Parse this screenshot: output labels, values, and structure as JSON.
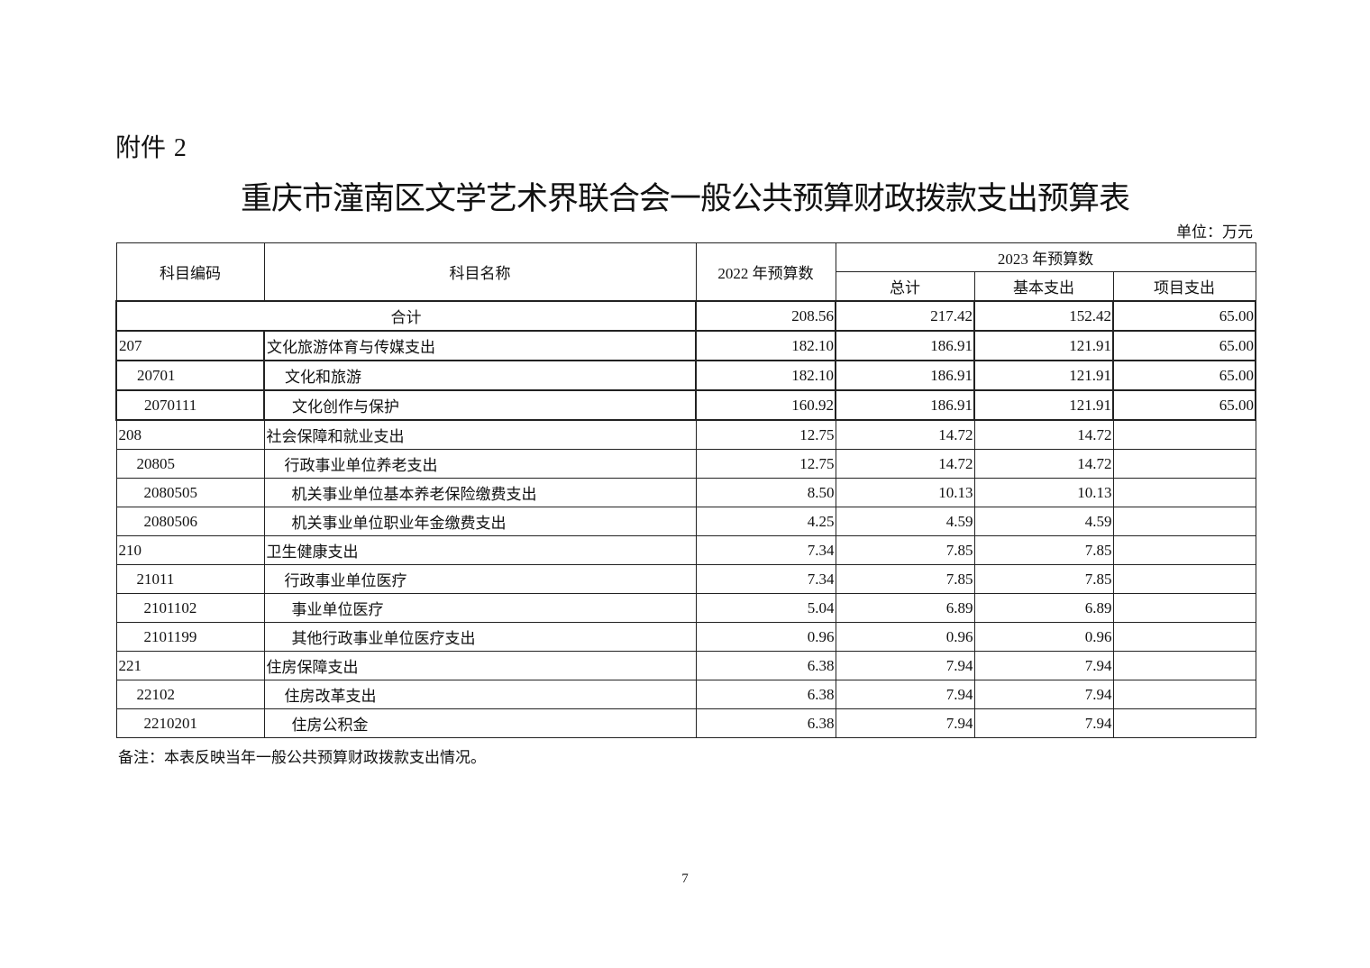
{
  "attachment": {
    "label": "附件",
    "number": "2"
  },
  "title": "重庆市潼南区文学艺术界联合会一般公共预算财政拨款支出预算表",
  "unit": "单位：万元",
  "table": {
    "headers": {
      "code": "科目编码",
      "name": "科目名称",
      "budget_2022": "2022 年预算数",
      "budget_2023": "2023 年预算数",
      "total": "总计",
      "basic": "基本支出",
      "project": "项目支出"
    },
    "total_row": {
      "label": "合计",
      "budget_2022": "208.56",
      "total": "217.42",
      "basic": "152.42",
      "project": "65.00"
    },
    "rows": [
      {
        "level": 0,
        "code": "207",
        "name": "文化旅游体育与传媒支出",
        "budget_2022": "182.10",
        "total": "186.91",
        "basic": "121.91",
        "project": "65.00"
      },
      {
        "level": 1,
        "code": "20701",
        "name": "文化和旅游",
        "budget_2022": "182.10",
        "total": "186.91",
        "basic": "121.91",
        "project": "65.00"
      },
      {
        "level": 2,
        "code": "2070111",
        "name": "文化创作与保护",
        "budget_2022": "160.92",
        "total": "186.91",
        "basic": "121.91",
        "project": "65.00"
      },
      {
        "level": 0,
        "code": "208",
        "name": "社会保障和就业支出",
        "budget_2022": "12.75",
        "total": "14.72",
        "basic": "14.72",
        "project": ""
      },
      {
        "level": 1,
        "code": "20805",
        "name": "行政事业单位养老支出",
        "budget_2022": "12.75",
        "total": "14.72",
        "basic": "14.72",
        "project": ""
      },
      {
        "level": 2,
        "code": "2080505",
        "name": "机关事业单位基本养老保险缴费支出",
        "budget_2022": "8.50",
        "total": "10.13",
        "basic": "10.13",
        "project": ""
      },
      {
        "level": 2,
        "code": "2080506",
        "name": "机关事业单位职业年金缴费支出",
        "budget_2022": "4.25",
        "total": "4.59",
        "basic": "4.59",
        "project": ""
      },
      {
        "level": 0,
        "code": "210",
        "name": "卫生健康支出",
        "budget_2022": "7.34",
        "total": "7.85",
        "basic": "7.85",
        "project": ""
      },
      {
        "level": 1,
        "code": "21011",
        "name": "行政事业单位医疗",
        "budget_2022": "7.34",
        "total": "7.85",
        "basic": "7.85",
        "project": ""
      },
      {
        "level": 2,
        "code": "2101102",
        "name": "事业单位医疗",
        "budget_2022": "5.04",
        "total": "6.89",
        "basic": "6.89",
        "project": ""
      },
      {
        "level": 2,
        "code": "2101199",
        "name": "其他行政事业单位医疗支出",
        "budget_2022": "0.96",
        "total": "0.96",
        "basic": "0.96",
        "project": ""
      },
      {
        "level": 0,
        "code": "221",
        "name": "住房保障支出",
        "budget_2022": "6.38",
        "total": "7.94",
        "basic": "7.94",
        "project": ""
      },
      {
        "level": 1,
        "code": "22102",
        "name": "住房改革支出",
        "budget_2022": "6.38",
        "total": "7.94",
        "basic": "7.94",
        "project": ""
      },
      {
        "level": 2,
        "code": "2210201",
        "name": "住房公积金",
        "budget_2022": "6.38",
        "total": "7.94",
        "basic": "7.94",
        "project": ""
      }
    ]
  },
  "note": "备注：本表反映当年一般公共预算财政拨款支出情况。",
  "page_number": "7"
}
